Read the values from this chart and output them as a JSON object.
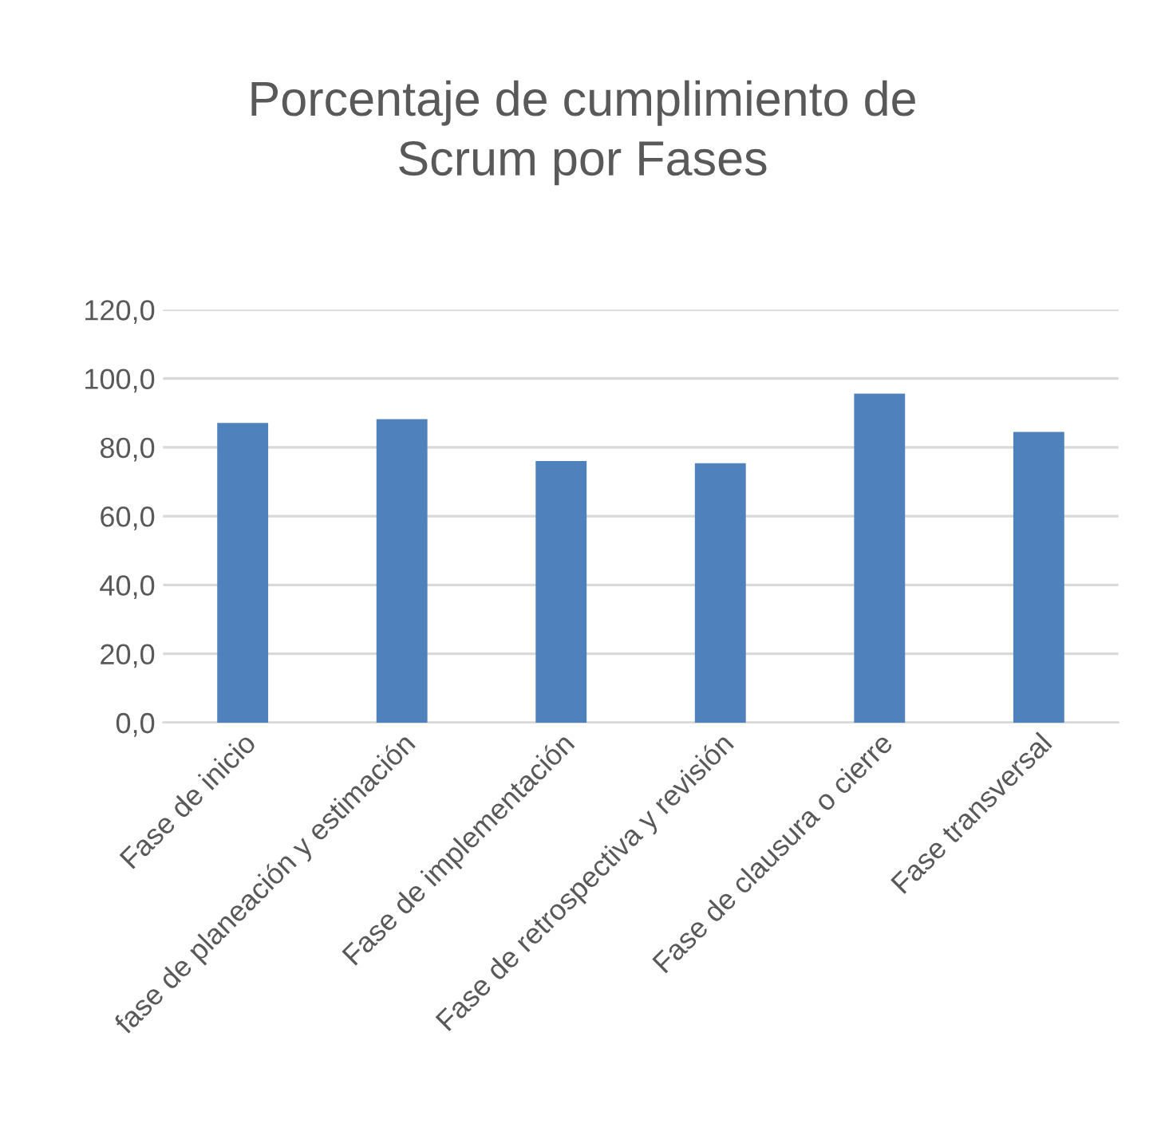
{
  "chart_data": {
    "type": "bar",
    "title": "Porcentaje de cumplimiento de\nScrum por Fases",
    "categories": [
      "Fase de inicio",
      "fase de planeación y estimación",
      "Fase de implementación",
      "Fase de retrospectiva y revisión",
      "Fase de clausura o cierre",
      "Fase transversal"
    ],
    "values": [
      87.1,
      88.2,
      76.0,
      75.4,
      95.6,
      84.5
    ],
    "color": "#4f81bd",
    "ylim": [
      0,
      120
    ],
    "yticks": [
      {
        "value": 0,
        "label": "0,0"
      },
      {
        "value": 20,
        "label": "20,0"
      },
      {
        "value": 40,
        "label": "40,0"
      },
      {
        "value": 60,
        "label": "60,0"
      },
      {
        "value": 80,
        "label": "80,0"
      },
      {
        "value": 100,
        "label": "100,0"
      },
      {
        "value": 120,
        "label": "120,0"
      }
    ],
    "grid": "y"
  }
}
